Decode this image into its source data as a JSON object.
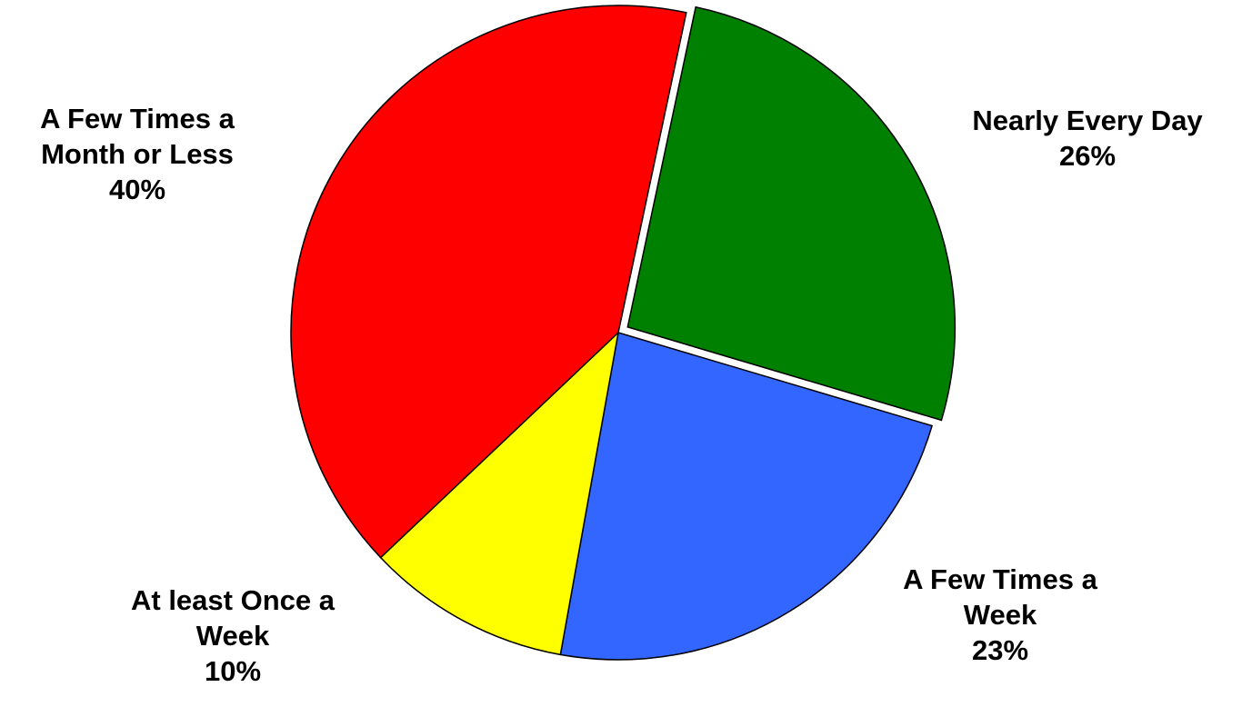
{
  "chart_data": {
    "type": "pie",
    "title": "",
    "slices": [
      {
        "label_lines": [
          "Nearly Every Day"
        ],
        "pct_label": "26%",
        "value": 26,
        "color": "#008000",
        "exploded": true
      },
      {
        "label_lines": [
          "A Few Times a",
          "Week"
        ],
        "pct_label": "23%",
        "value": 23,
        "color": "#3366FF",
        "exploded": false
      },
      {
        "label_lines": [
          "At least Once a",
          "Week"
        ],
        "pct_label": "10%",
        "value": 10,
        "color": "#FFFF00",
        "exploded": false
      },
      {
        "label_lines": [
          "A Few Times a",
          "Month or Less"
        ],
        "pct_label": "40%",
        "value": 40,
        "color": "#FF0000",
        "exploded": false
      }
    ]
  }
}
